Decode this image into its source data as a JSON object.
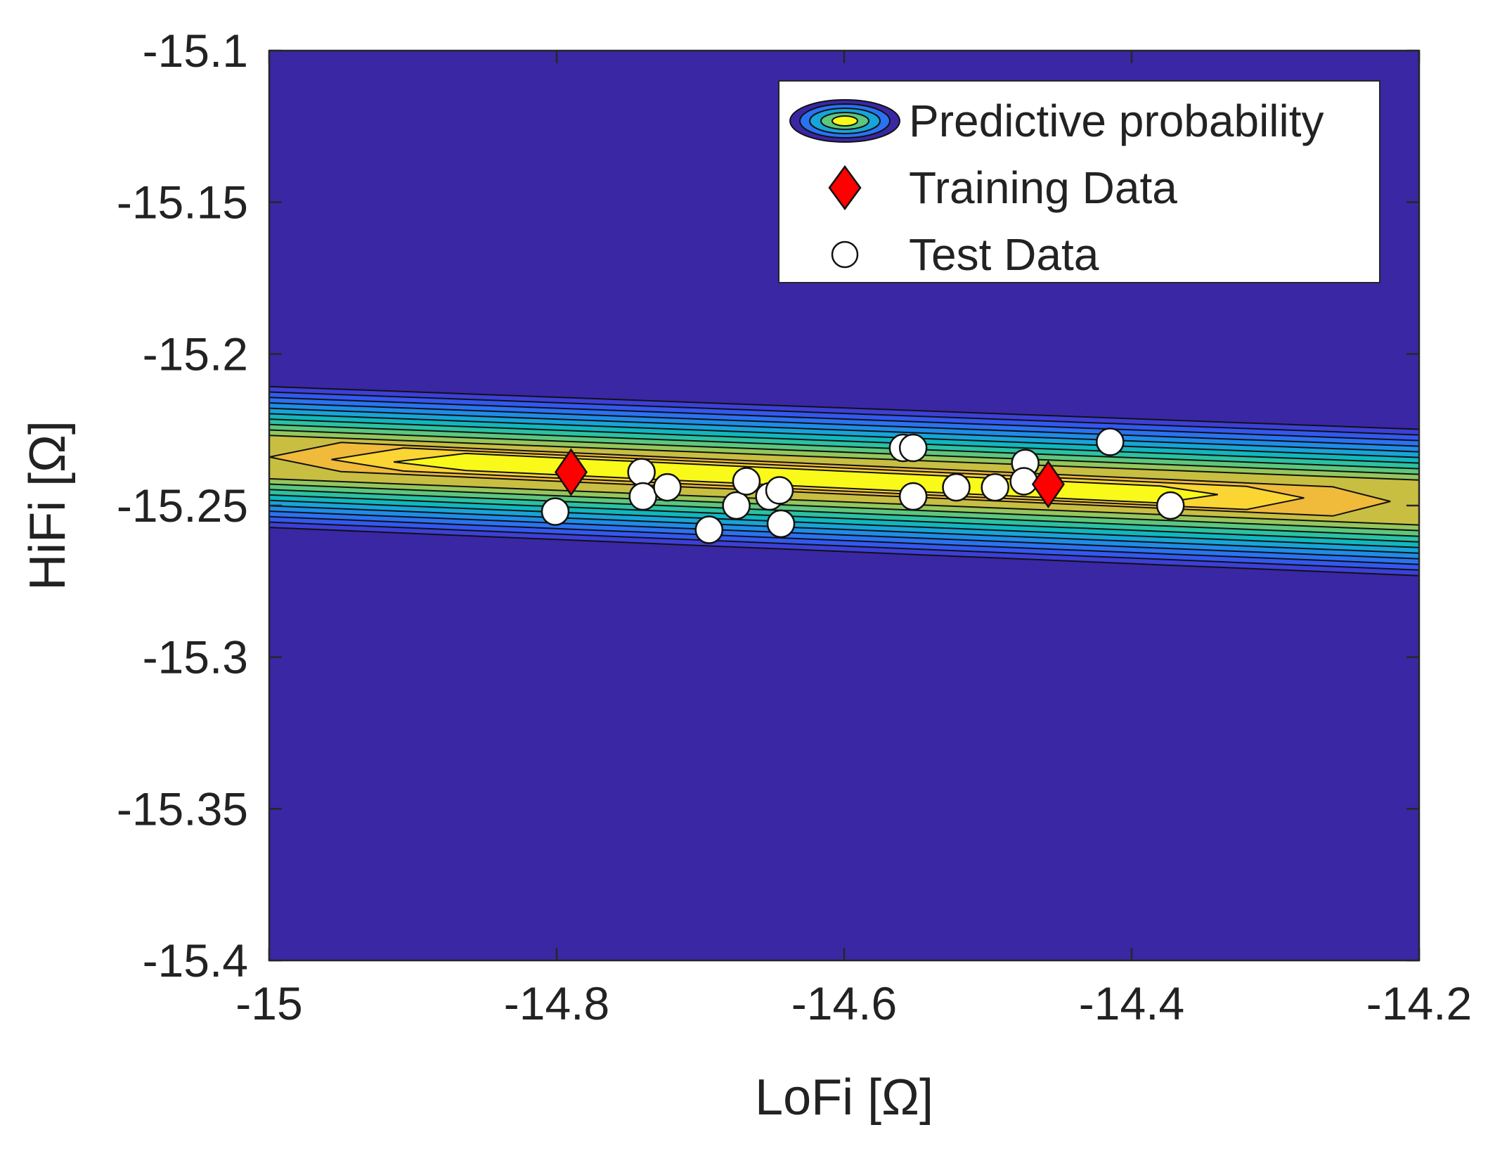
{
  "chart_data": {
    "type": "contour",
    "title": "",
    "xlabel": "LoFi [Ω]",
    "ylabel": "HiFi [Ω]",
    "xlim": [
      -15,
      -14.2
    ],
    "ylim": [
      -15.4,
      -15.1
    ],
    "xticks": [
      -15,
      -14.8,
      -14.6,
      -14.4,
      -14.2
    ],
    "xtick_labels": [
      "-15",
      "-14.8",
      "-14.6",
      "-14.4",
      "-14.2"
    ],
    "yticks": [
      -15.1,
      -15.15,
      -15.2,
      -15.25,
      -15.3,
      -15.35,
      -15.4
    ],
    "ytick_labels": [
      "-15.1",
      "-15.15",
      "-15.2",
      "-15.25",
      "-15.3",
      "-15.35",
      "-15.4"
    ],
    "grid": false,
    "legend_position": "top-right",
    "legend": [
      {
        "label": "Predictive probability",
        "marker": "filled-contour"
      },
      {
        "label": "Training Data",
        "marker": "red-diamond"
      },
      {
        "label": "Test Data",
        "marker": "white-circle"
      }
    ],
    "colors": {
      "background": "#3A27A4",
      "training": "#FF0000",
      "test": "#FFFFFF",
      "contour_levels": [
        "#3A27A4",
        "#3D3FD8",
        "#3358F0",
        "#2A72F2",
        "#1E8CE8",
        "#17A4D8",
        "#10B7BE",
        "#2AC2A2",
        "#5CC77E",
        "#94C75C",
        "#C8BF42",
        "#F0BA3B",
        "#FBD534",
        "#F9F91A"
      ]
    },
    "contour_band": {
      "description": "predictive density concentrated along a narrow band",
      "center_line": [
        [
          -15.0,
          -15.234
        ],
        [
          -14.2,
          -15.249
        ]
      ],
      "outer_halfwidth_left": 0.025,
      "outer_halfwidth_right": 0.026,
      "core_x_range": [
        -14.87,
        -14.4
      ],
      "core_halfwidth": 0.003,
      "level_count": 14
    },
    "series": [
      {
        "name": "Training Data",
        "points": [
          [
            -14.79,
            -15.239
          ],
          [
            -14.458,
            -15.243
          ]
        ]
      },
      {
        "name": "Test Data",
        "points": [
          [
            -14.801,
            -15.252
          ],
          [
            -14.741,
            -15.239
          ],
          [
            -14.74,
            -15.247
          ],
          [
            -14.723,
            -15.244
          ],
          [
            -14.694,
            -15.258
          ],
          [
            -14.675,
            -15.25
          ],
          [
            -14.668,
            -15.242
          ],
          [
            -14.652,
            -15.247
          ],
          [
            -14.645,
            -15.245
          ],
          [
            -14.644,
            -15.256
          ],
          [
            -14.559,
            -15.231
          ],
          [
            -14.552,
            -15.231
          ],
          [
            -14.552,
            -15.247
          ],
          [
            -14.522,
            -15.244
          ],
          [
            -14.495,
            -15.244
          ],
          [
            -14.474,
            -15.236
          ],
          [
            -14.475,
            -15.242
          ],
          [
            -14.415,
            -15.229
          ],
          [
            -14.373,
            -15.25
          ]
        ]
      }
    ]
  }
}
